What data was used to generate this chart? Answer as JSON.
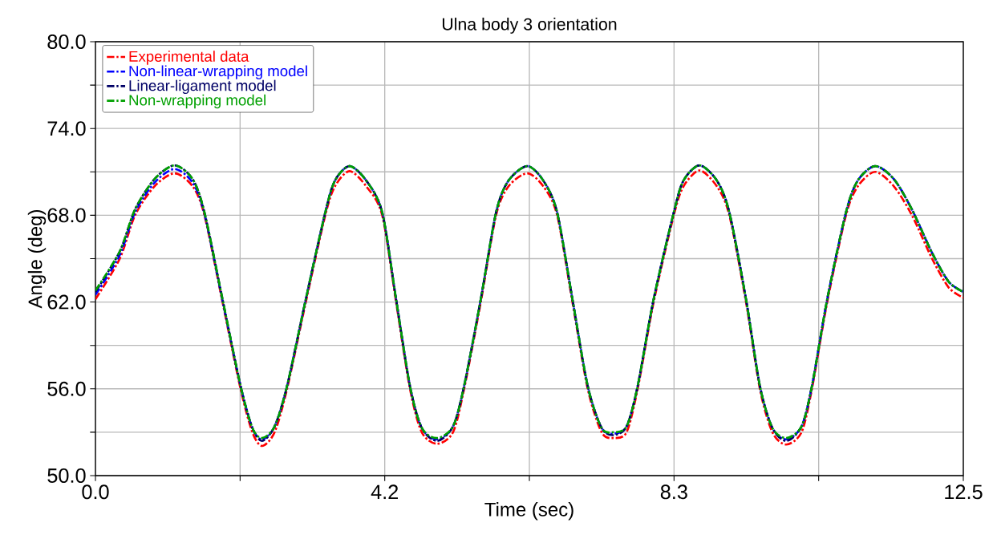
{
  "chart_data": {
    "type": "line",
    "title": "Ulna body 3 orientation",
    "xlabel": "Time (sec)",
    "ylabel": "Angle (deg)",
    "x": [
      0,
      0.35,
      0.57,
      0.85,
      1.14,
      1.4,
      1.57,
      1.83,
      2.09,
      2.26,
      2.4,
      2.58,
      2.76,
      3.03,
      3.31,
      3.45,
      3.66,
      3.9,
      4.13,
      4.33,
      4.53,
      4.7,
      4.92,
      5.15,
      5.31,
      5.55,
      5.77,
      5.95,
      6.22,
      6.45,
      6.65,
      6.87,
      7.09,
      7.29,
      7.46,
      7.65,
      7.81,
      8.04,
      8.33,
      8.47,
      8.7,
      8.95,
      9.13,
      9.37,
      9.57,
      9.75,
      9.95,
      10.17,
      10.32,
      10.54,
      10.81,
      10.98,
      11.23,
      11.5,
      11.76,
      12.05,
      12.29,
      12.5
    ],
    "series": [
      {
        "name": "Experimental data",
        "color": "#ff0000",
        "values": [
          62.2,
          65,
          68,
          70.0,
          70.9,
          70.0,
          68,
          62,
          56,
          53,
          52.05,
          53,
          56,
          62,
          68,
          70.0,
          71.05,
          70.0,
          68,
          62,
          56,
          53,
          52.2,
          53,
          56,
          62,
          68,
          70.0,
          70.9,
          70.0,
          68,
          62,
          56,
          53,
          52.6,
          53,
          56,
          62,
          68,
          70.0,
          71.1,
          70.0,
          68,
          62,
          56,
          53,
          52.15,
          53,
          56,
          62,
          68,
          70.0,
          71.0,
          70.0,
          68,
          65,
          63,
          62.3
        ]
      },
      {
        "name": "Non-linear-wrapping model",
        "color": "#0000ff",
        "values": [
          62.5,
          65.25,
          68.2,
          70.25,
          71.2,
          70.25,
          68.1,
          62.1,
          56.2,
          53.3,
          52.5,
          53.4,
          56.2,
          62.2,
          68.2,
          70.4,
          71.4,
          70.4,
          68.2,
          62.2,
          56.2,
          53.3,
          52.5,
          53.4,
          56.2,
          62.2,
          68.2,
          70.4,
          71.4,
          70.4,
          68.2,
          62.2,
          56.2,
          53.3,
          52.9,
          53.4,
          56.2,
          62.2,
          68.2,
          70.4,
          71.45,
          70.4,
          68.2,
          62.2,
          56.2,
          53.3,
          52.5,
          53.4,
          56.2,
          62.2,
          68.2,
          70.4,
          71.4,
          70.5,
          68.4,
          65.4,
          63.4,
          62.7
        ]
      },
      {
        "name": "Linear-ligament model",
        "color": "#000066",
        "values": [
          62.7,
          65.5,
          68.4,
          70.5,
          71.45,
          70.5,
          68.2,
          62.2,
          56.2,
          53.3,
          52.4,
          53.4,
          56.2,
          62.2,
          68.2,
          70.4,
          71.4,
          70.4,
          68.2,
          62.2,
          56.2,
          53.3,
          52.4,
          53.4,
          56.2,
          62.2,
          68.2,
          70.4,
          71.4,
          70.4,
          68.2,
          62.2,
          56.2,
          53.3,
          52.8,
          53.4,
          56.2,
          62.2,
          68.2,
          70.4,
          71.45,
          70.4,
          68.2,
          62.2,
          56.2,
          53.3,
          52.4,
          53.4,
          56.2,
          62.2,
          68.2,
          70.4,
          71.4,
          70.5,
          68.4,
          65.4,
          63.4,
          62.7
        ]
      },
      {
        "name": "Non-wrapping model",
        "color": "#00a000",
        "values": [
          62.8,
          65.5,
          68.4,
          70.5,
          71.45,
          70.5,
          68.2,
          62.2,
          56.2,
          53.3,
          52.6,
          53.4,
          56.2,
          62.2,
          68.2,
          70.4,
          71.4,
          70.4,
          68.2,
          62.2,
          56.2,
          53.3,
          52.6,
          53.4,
          56.2,
          62.2,
          68.2,
          70.4,
          71.4,
          70.4,
          68.2,
          62.2,
          56.2,
          53.3,
          53.0,
          53.4,
          56.2,
          62.2,
          68.2,
          70.4,
          71.45,
          70.4,
          68.2,
          62.2,
          56.2,
          53.3,
          52.6,
          53.4,
          56.2,
          62.2,
          68.2,
          70.4,
          71.4,
          70.5,
          68.4,
          65.4,
          63.4,
          62.7
        ]
      }
    ],
    "xlim": [
      0,
      12.5
    ],
    "ylim": [
      50,
      80
    ],
    "xticks": [
      {
        "value": 0,
        "label": "0.0"
      },
      {
        "value": 2.0833,
        "label": null
      },
      {
        "value": 4.1667,
        "label": "4.2"
      },
      {
        "value": 6.25,
        "label": null
      },
      {
        "value": 8.3333,
        "label": "8.3"
      },
      {
        "value": 10.4167,
        "label": null
      },
      {
        "value": 12.5,
        "label": "12.5"
      }
    ],
    "yticks": [
      {
        "value": 50,
        "label": "50.0"
      },
      {
        "value": 53,
        "label": null
      },
      {
        "value": 56,
        "label": "56.0"
      },
      {
        "value": 59,
        "label": null
      },
      {
        "value": 62,
        "label": "62.0"
      },
      {
        "value": 65,
        "label": null
      },
      {
        "value": 68,
        "label": "68.0"
      },
      {
        "value": 71,
        "label": null
      },
      {
        "value": 74,
        "label": "74.0"
      },
      {
        "value": 77,
        "label": null
      },
      {
        "value": 80,
        "label": "80.0"
      }
    ],
    "grid": true,
    "legend": "top left",
    "line_style": "dashed"
  }
}
